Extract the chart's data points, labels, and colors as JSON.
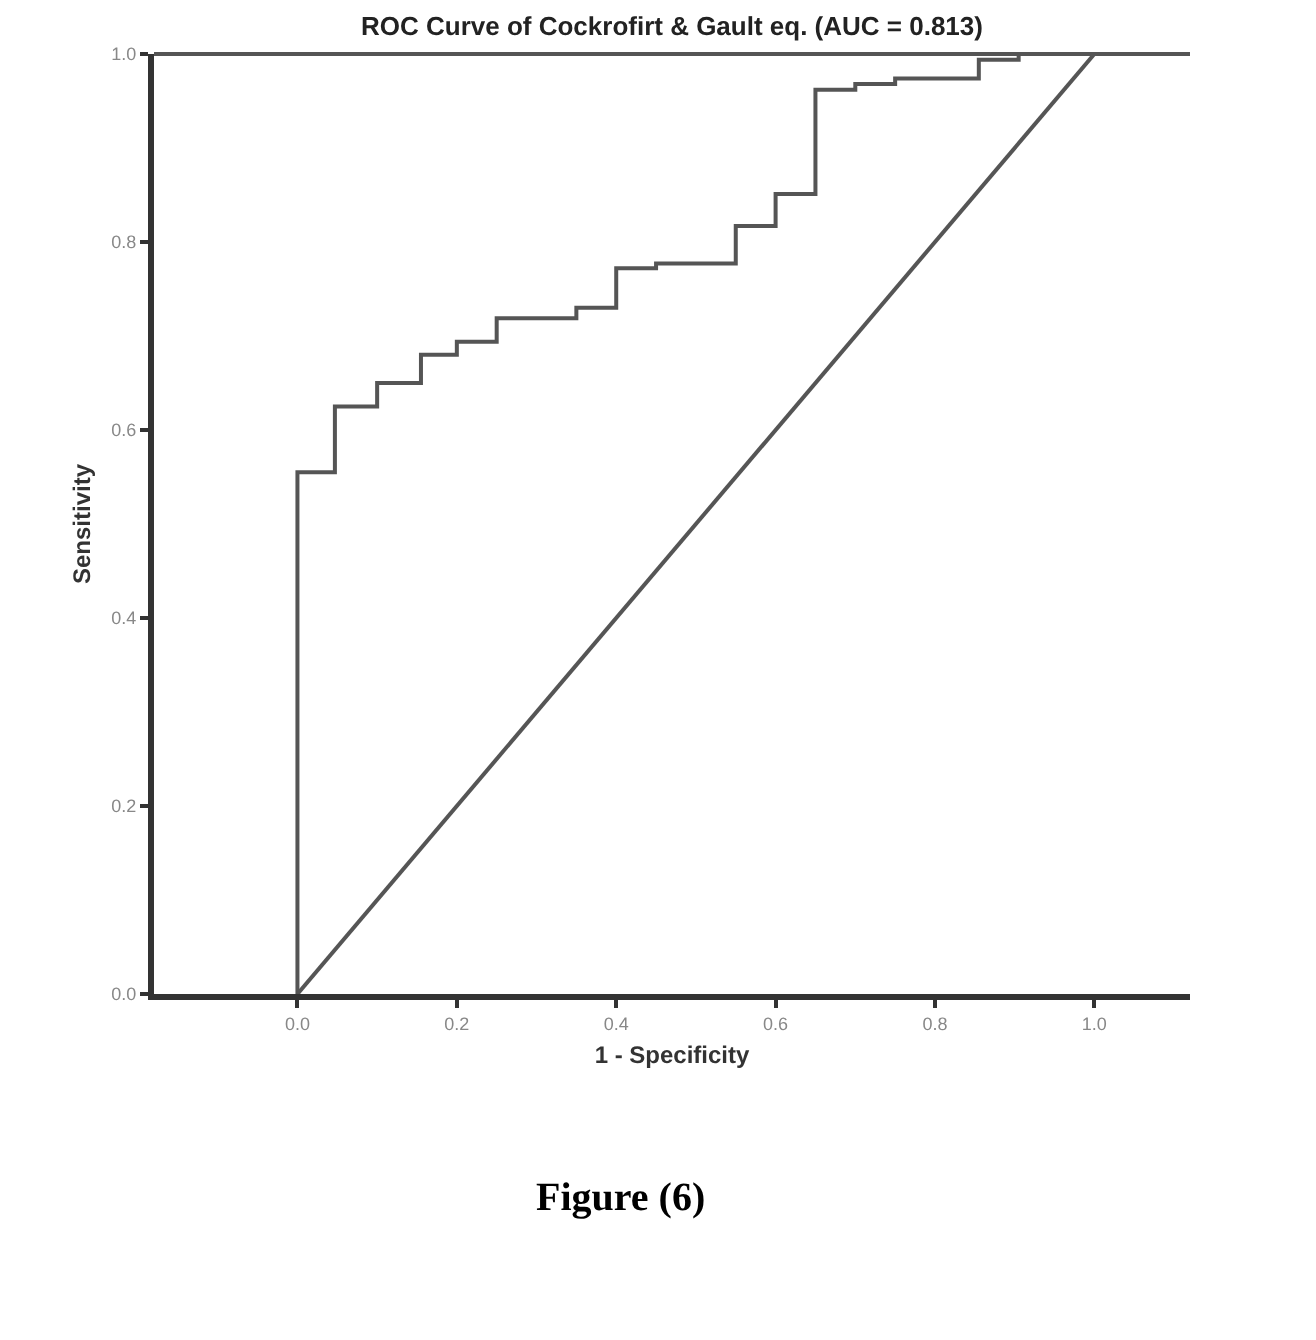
{
  "chart_data": {
    "type": "step",
    "title": "ROC Curve of Cockrofirt & Gault eq. (AUC = 0.813)",
    "xlabel": "1 - Specificity",
    "ylabel": "Sensitivity",
    "series": [
      {
        "color": "#555555",
        "x": [
          0,
          0,
          0.047,
          0.1,
          0.155,
          0.2,
          0.25,
          0.35,
          0.4,
          0.45,
          0.55,
          0.6,
          0.65,
          0.7,
          0.75,
          0.855,
          0.905,
          1.0
        ],
        "values": [
          0,
          0.555,
          0.625,
          0.65,
          0.68,
          0.694,
          0.719,
          0.73,
          0.772,
          0.777,
          0.817,
          0.851,
          0.962,
          0.968,
          0.974,
          0.994,
          1.0,
          1.0
        ]
      },
      {
        "type": "line",
        "color": "#555555",
        "x": [
          0,
          1.0
        ],
        "values": [
          0,
          1.0
        ]
      }
    ],
    "xlim": [
      -0.18,
      1.12
    ],
    "ylim": [
      0,
      1.0
    ],
    "xticks": [
      {
        "value": 0,
        "label": "0.0"
      },
      {
        "value": 0.2,
        "label": "0.2"
      },
      {
        "value": 0.4,
        "label": "0.4"
      },
      {
        "value": 0.6,
        "label": "0.6"
      },
      {
        "value": 0.8,
        "label": "0.8"
      },
      {
        "value": 1.0,
        "label": "1.0"
      }
    ],
    "yticks": [
      {
        "value": 0,
        "label": "0.0"
      },
      {
        "value": 0.2,
        "label": "0.2"
      },
      {
        "value": 0.4,
        "label": "0.4"
      },
      {
        "value": 0.6,
        "label": "0.6"
      },
      {
        "value": 0.8,
        "label": "0.8"
      },
      {
        "value": 1.0,
        "label": "1.0"
      }
    ],
    "annotations": [
      "Figure (6)"
    ]
  }
}
